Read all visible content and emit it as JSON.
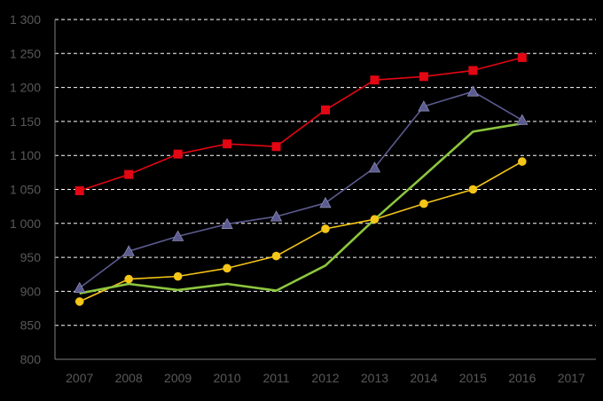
{
  "chart_data": {
    "type": "line",
    "title": "",
    "xlabel": "",
    "ylabel": "",
    "categories": [
      "2007",
      "2008",
      "2009",
      "2010",
      "2011",
      "2012",
      "2013",
      "2014",
      "2015",
      "2016",
      "2017"
    ],
    "ylim": [
      800,
      1300
    ],
    "yticks": [
      800,
      850,
      900,
      950,
      1000,
      1050,
      1100,
      1150,
      1200,
      1250,
      1300
    ],
    "ytick_labels": [
      "800",
      "850",
      "900",
      "950",
      "1 000",
      "1 050",
      "1 100",
      "1 150",
      "1 200",
      "1 250",
      "1 300"
    ],
    "grid": "horizontal dashed",
    "legend": "none",
    "series": [
      {
        "color": "#e30613",
        "marker": "square",
        "values": [
          1048,
          1072,
          1102,
          1117,
          1113,
          1167,
          1211,
          1216,
          1225,
          1244,
          null
        ]
      },
      {
        "color": "#5b5b8f",
        "marker": "triangle",
        "values": [
          905,
          959,
          981,
          999,
          1010,
          1030,
          1082,
          1172,
          1194,
          1152,
          null
        ]
      },
      {
        "color": "#f5c518",
        "marker": "circle",
        "values": [
          885,
          918,
          922,
          934,
          952,
          992,
          1006,
          1029,
          1050,
          1091,
          null
        ]
      },
      {
        "color": "#8dc63f",
        "marker": "none",
        "values": [
          897,
          911,
          902,
          911,
          901,
          938,
          1006,
          1070,
          1135,
          1147,
          null
        ]
      }
    ]
  }
}
